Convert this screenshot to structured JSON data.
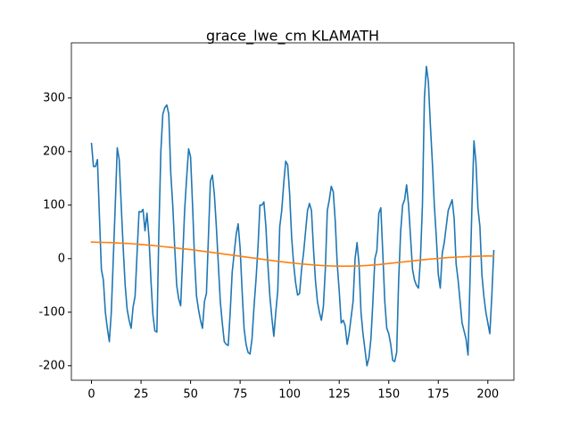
{
  "chart_data": {
    "type": "line",
    "title": "grace_lwe_cm KLAMATH",
    "xlim": [
      -10.15,
      213.15
    ],
    "xticks": [
      0,
      25,
      50,
      75,
      100,
      125,
      150,
      175,
      200
    ],
    "ylim": [
      -227,
      403
    ],
    "yticks": [
      -200,
      -100,
      0,
      100,
      200,
      300
    ],
    "grid": false,
    "series": [
      {
        "color": "#1f77b4",
        "x": [
          0,
          1,
          2,
          3,
          4,
          5,
          6,
          7,
          8,
          9,
          10,
          11,
          12,
          13,
          14,
          15,
          16,
          17,
          18,
          19,
          20,
          21,
          22,
          23,
          24,
          25,
          26,
          27,
          28,
          29,
          30,
          31,
          32,
          33,
          34,
          35,
          36,
          37,
          38,
          39,
          40,
          41,
          42,
          43,
          44,
          45,
          46,
          47,
          48,
          49,
          50,
          51,
          52,
          53,
          54,
          55,
          56,
          57,
          58,
          59,
          60,
          61,
          62,
          63,
          64,
          65,
          66,
          67,
          68,
          69,
          70,
          71,
          72,
          73,
          74,
          75,
          76,
          77,
          78,
          79,
          80,
          81,
          82,
          83,
          84,
          85,
          86,
          87,
          88,
          89,
          90,
          91,
          92,
          93,
          94,
          95,
          96,
          97,
          98,
          99,
          100,
          101,
          102,
          103,
          104,
          105,
          106,
          107,
          108,
          109,
          110,
          111,
          112,
          113,
          114,
          115,
          116,
          117,
          118,
          119,
          120,
          121,
          122,
          123,
          124,
          125,
          126,
          127,
          128,
          129,
          130,
          131,
          132,
          133,
          134,
          135,
          136,
          137,
          138,
          139,
          140,
          141,
          142,
          143,
          144,
          145,
          146,
          147,
          148,
          149,
          150,
          151,
          152,
          153,
          154,
          155,
          156,
          157,
          158,
          159,
          160,
          161,
          162,
          163,
          164,
          165,
          166,
          167,
          168,
          169,
          170,
          171,
          172,
          173,
          174,
          175,
          176,
          177,
          178,
          179,
          180,
          181,
          182,
          183,
          184,
          185,
          186,
          187,
          188,
          189,
          190,
          191,
          192,
          193,
          194,
          195,
          196,
          197,
          198,
          199,
          200,
          201,
          202,
          203
        ],
        "values": [
          215,
          172,
          172,
          185,
          80,
          -20,
          -40,
          -100,
          -130,
          -155,
          -100,
          0,
          100,
          207,
          185,
          100,
          20,
          -50,
          -95,
          -115,
          -130,
          -90,
          -70,
          10,
          88,
          87,
          92,
          52,
          85,
          40,
          -40,
          -105,
          -135,
          -137,
          50,
          200,
          270,
          282,
          287,
          270,
          160,
          100,
          20,
          -50,
          -75,
          -88,
          0,
          90,
          150,
          205,
          190,
          100,
          0,
          -70,
          -95,
          -115,
          -130,
          -80,
          -65,
          40,
          145,
          156,
          120,
          60,
          -10,
          -80,
          -120,
          -155,
          -160,
          -162,
          -100,
          -25,
          10,
          45,
          65,
          20,
          -60,
          -130,
          -160,
          -175,
          -178,
          -150,
          -90,
          -40,
          20,
          100,
          100,
          106,
          60,
          -10,
          -70,
          -110,
          -145,
          -100,
          -60,
          60,
          90,
          140,
          182,
          175,
          120,
          40,
          -10,
          -45,
          -68,
          -65,
          -20,
          10,
          50,
          90,
          103,
          90,
          20,
          -40,
          -80,
          -100,
          -115,
          -90,
          -20,
          90,
          110,
          135,
          125,
          70,
          -10,
          -60,
          -120,
          -115,
          -125,
          -160,
          -140,
          -110,
          -80,
          0,
          30,
          -10,
          -100,
          -140,
          -170,
          -200,
          -185,
          -150,
          -80,
          0,
          15,
          85,
          95,
          10,
          -80,
          -130,
          -140,
          -160,
          -190,
          -192,
          -175,
          -40,
          50,
          100,
          110,
          138,
          100,
          40,
          -20,
          -40,
          -50,
          -55,
          0,
          100,
          300,
          359,
          330,
          250,
          180,
          100,
          40,
          -30,
          -55,
          10,
          30,
          60,
          90,
          100,
          110,
          75,
          -10,
          -40,
          -80,
          -120,
          -135,
          -150,
          -180,
          -40,
          100,
          220,
          180,
          95,
          60,
          -30,
          -70,
          -100,
          -120,
          -140,
          -70,
          15
        ]
      },
      {
        "color": "#ff7f0e",
        "x": [
          0,
          5,
          10,
          15,
          20,
          25,
          30,
          35,
          40,
          45,
          50,
          55,
          60,
          65,
          70,
          75,
          80,
          85,
          90,
          95,
          100,
          105,
          110,
          115,
          120,
          125,
          130,
          135,
          140,
          145,
          150,
          155,
          160,
          165,
          170,
          175,
          180,
          185,
          190,
          195,
          200,
          203
        ],
        "values": [
          31,
          30.5,
          30,
          29,
          28,
          26.5,
          25,
          23,
          21,
          19,
          17,
          14.5,
          12,
          9.5,
          7,
          4.5,
          2,
          -0.5,
          -3,
          -5.5,
          -7.5,
          -9.5,
          -11,
          -12.5,
          -13.5,
          -14,
          -14,
          -13.5,
          -12.5,
          -11,
          -9,
          -7,
          -5,
          -3,
          -1,
          0.5,
          2,
          3,
          4,
          4.5,
          5,
          5
        ]
      }
    ]
  }
}
